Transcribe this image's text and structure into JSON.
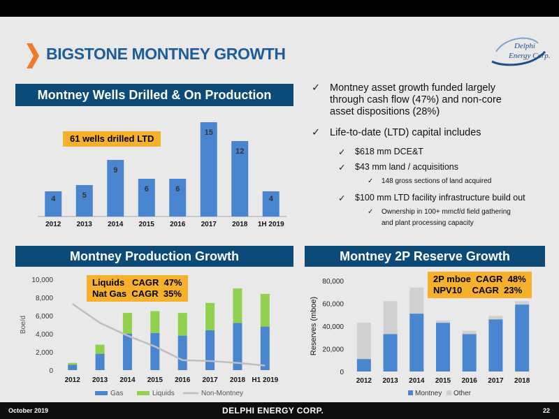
{
  "header": {
    "title": "BIGSTONE MONTNEY GROWTH"
  },
  "logo": {
    "line1": "Delphi",
    "line2": "Energy Corp."
  },
  "sections": {
    "wells": "Montney Wells Drilled & On Production",
    "production": "Montney Production Growth",
    "reserves": "Montney 2P Reserve Growth"
  },
  "callouts": {
    "wells": "61 wells drilled LTD",
    "production": "Liquids   CAGR  47%\nNat Gas  CAGR  35%",
    "reserves": "2P mboe  CAGR  48%\nNPV10    CAGR  23%"
  },
  "bullets": [
    {
      "level": 1,
      "text": "Montney asset growth funded largely"
    },
    {
      "level": 1,
      "text": "through cash flow (47%) and non-core",
      "cont": true
    },
    {
      "level": 1,
      "text": "asset dispositions (28%)",
      "cont": true
    },
    {
      "level": 1,
      "text": "Life-to-date (LTD) capital includes"
    },
    {
      "level": 2,
      "text": "$618 mm DCE&T"
    },
    {
      "level": 2,
      "text": "$43 mm land / acquisitions"
    },
    {
      "level": 3,
      "text": "148 gross sections of land acquired"
    },
    {
      "level": 2,
      "text": "$100 mm LTD facility infrastructure build out"
    },
    {
      "level": 3,
      "text": "Ownership in 100+ mmcf/d field gathering"
    },
    {
      "level": 3,
      "text": "and plant processing capacity",
      "cont": true
    }
  ],
  "footer": {
    "date": "October 2019",
    "company": "DELPHI ENERGY CORP.",
    "page": "22"
  },
  "colors": {
    "navy": "#0c4b78",
    "bar_blue": "#4a86cf",
    "liquids_green": "#92d050",
    "non_montney_grey": "#bfbfbf",
    "other_grey": "#d0d0d0",
    "callout_orange": "#f6b12c",
    "title_blue": "#1f5d9a"
  },
  "chart_data": [
    {
      "id": "wells",
      "type": "bar",
      "categories": [
        "2012",
        "2013",
        "2014",
        "2015",
        "2016",
        "2017",
        "2018",
        "1H 2019"
      ],
      "values": [
        4,
        5,
        9,
        6,
        6,
        15,
        12,
        4
      ],
      "ylim": [
        0,
        16
      ]
    },
    {
      "id": "production",
      "type": "bar",
      "stacked": true,
      "categories": [
        "2012",
        "2013",
        "2014",
        "2015",
        "2016",
        "2017",
        "2018",
        "H1 2019"
      ],
      "series": [
        {
          "name": "Gas",
          "values": [
            600,
            1800,
            4000,
            4100,
            3800,
            4400,
            5200,
            4800
          ]
        },
        {
          "name": "Liquids",
          "values": [
            200,
            1000,
            2300,
            2400,
            2500,
            3000,
            3800,
            3600
          ]
        }
      ],
      "line_series": {
        "name": "Non-Montney",
        "values": [
          7300,
          5200,
          3800,
          2600,
          1100,
          1000,
          800,
          500
        ]
      },
      "ylabel": "Boe/d",
      "ylim": [
        0,
        10000
      ],
      "yticks": [
        "0",
        "2,000",
        "4,000",
        "6,000",
        "8,000",
        "10,000"
      ],
      "legend": "bottom"
    },
    {
      "id": "reserves",
      "type": "bar",
      "stacked": true,
      "categories": [
        "2012",
        "2013",
        "2014",
        "2015",
        "2016",
        "2017",
        "2018"
      ],
      "series": [
        {
          "name": "Montney",
          "values": [
            11000,
            33000,
            51000,
            43000,
            33000,
            46000,
            59000
          ]
        },
        {
          "name": "Other",
          "values": [
            32000,
            29000,
            23000,
            2000,
            3000,
            3000,
            3000
          ]
        }
      ],
      "ylabel": "Reserves (mboe)",
      "ylim": [
        0,
        80000
      ],
      "yticks": [
        "0",
        "20,000",
        "40,000",
        "60,000",
        "80,000"
      ],
      "legend": "bottom"
    }
  ]
}
